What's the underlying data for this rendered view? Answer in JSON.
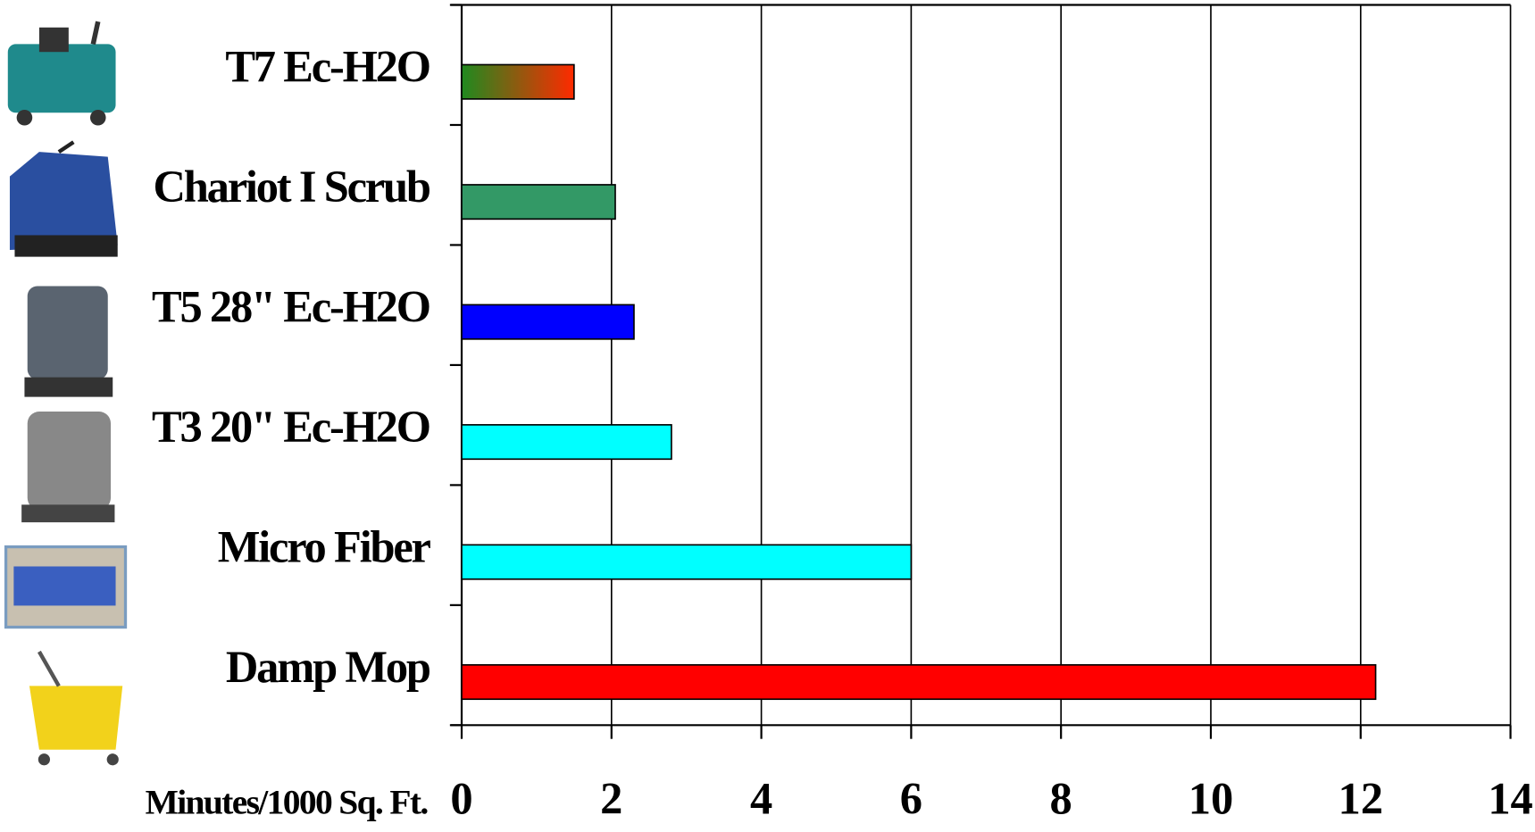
{
  "chart_data": {
    "type": "bar",
    "orientation": "horizontal",
    "categories": [
      "T7 Ec-H2O",
      "Chariot I Scrub",
      "T5 28\" Ec-H2O",
      "T3 20\" Ec-H2O",
      "Micro Fiber",
      "Damp Mop"
    ],
    "values": [
      1.5,
      2.05,
      2.3,
      2.8,
      6,
      12.2
    ],
    "colors": [
      [
        "#1f8a1f",
        "#ff2a00"
      ],
      "#339966",
      "#0000ff",
      "#00ffff",
      "#00ffff",
      "#ff0000"
    ],
    "x_label": "Minutes/1000 Sq. Ft.",
    "xlim": [
      0,
      14
    ],
    "xticks": [
      0,
      2,
      4,
      6,
      8,
      10,
      12,
      14
    ],
    "grid": true
  }
}
